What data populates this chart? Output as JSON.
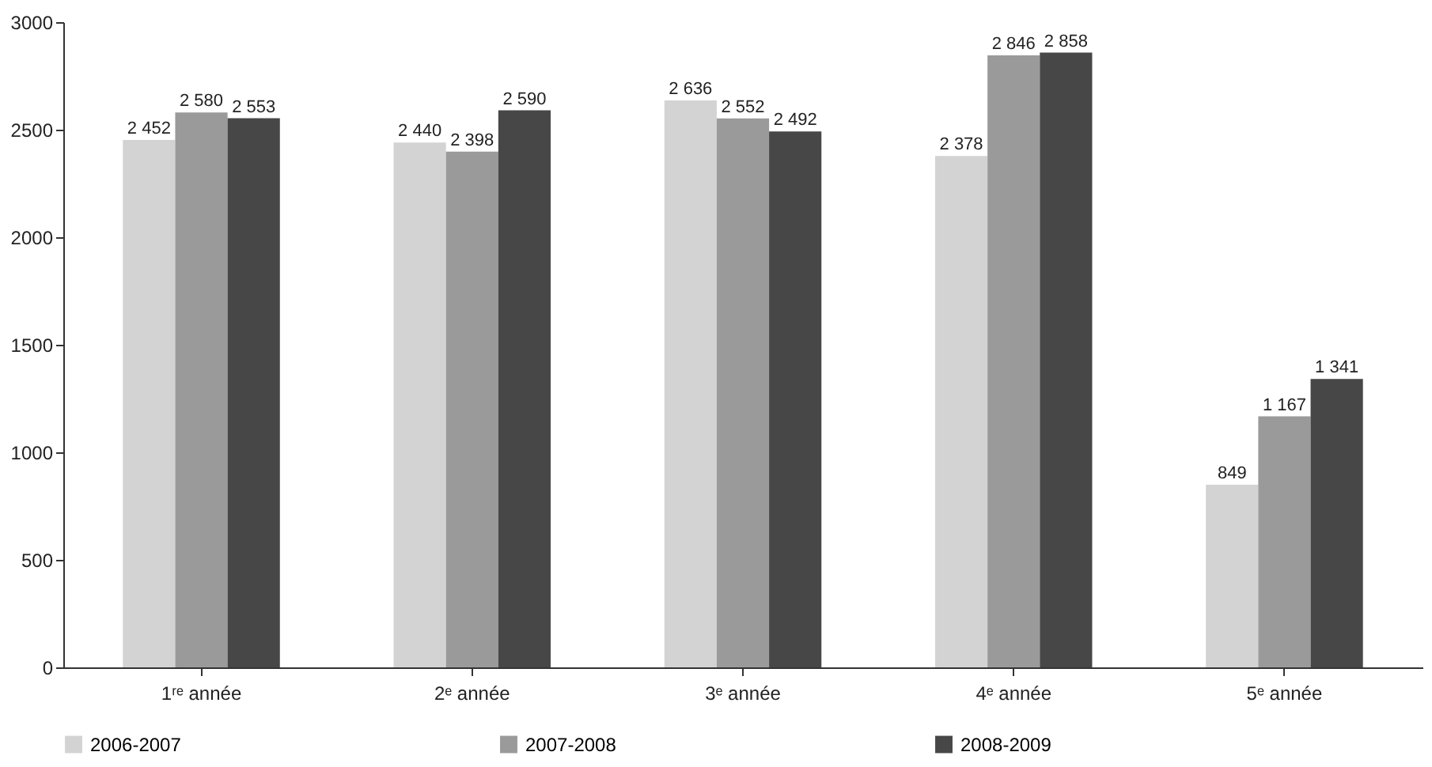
{
  "chart_data": {
    "type": "bar",
    "categories": [
      "1ʳᵉ année",
      "2ᵉ année",
      "3ᵉ année",
      "4ᵉ année",
      "5ᵉ année"
    ],
    "series": [
      {
        "name": "2006-2007",
        "color": "#d3d3d3",
        "values": [
          2452,
          2440,
          2636,
          2378,
          849
        ],
        "value_labels": [
          "2 452",
          "2 440",
          "2 636",
          "2 378",
          "849"
        ]
      },
      {
        "name": "2007-2008",
        "color": "#9a9a9a",
        "values": [
          2580,
          2398,
          2552,
          2846,
          1167
        ],
        "value_labels": [
          "2 580",
          "2 398",
          "2 552",
          "2 846",
          "1 167"
        ]
      },
      {
        "name": "2008-2009",
        "color": "#474747",
        "values": [
          2553,
          2590,
          2492,
          2858,
          1341
        ],
        "value_labels": [
          "2 553",
          "2 590",
          "2 492",
          "2 858",
          "1 341"
        ]
      }
    ],
    "ylim": [
      0,
      3000
    ],
    "yticks": [
      0,
      500,
      1000,
      1500,
      2000,
      2500,
      3000
    ],
    "grid": false,
    "legend": "bottom"
  }
}
